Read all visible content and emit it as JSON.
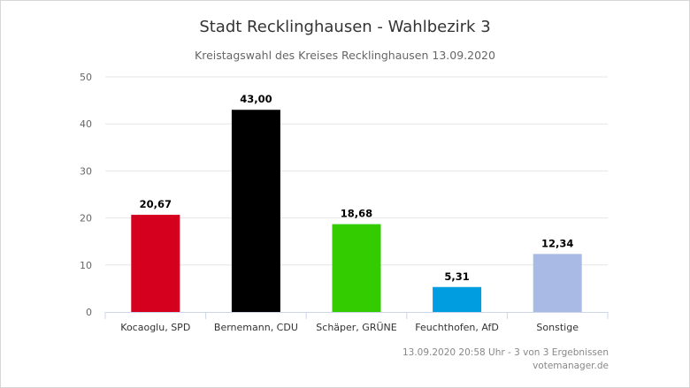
{
  "chart_data": {
    "type": "bar",
    "title": "Stadt Recklinghausen - Wahlbezirk 3",
    "subtitle": "Kreistagswahl des Kreises Recklinghausen 13.09.2020",
    "categories": [
      "Kocaoglu, SPD",
      "Bernemann, CDU",
      "Schäper, GRÜNE",
      "Feuchthofen, AfD",
      "Sonstige"
    ],
    "values": [
      20.67,
      43.0,
      18.68,
      5.31,
      12.34
    ],
    "value_labels": [
      "20,67",
      "43,00",
      "18,68",
      "5,31",
      "12,34"
    ],
    "colors": [
      "#d4001e",
      "#000000",
      "#33cc00",
      "#009ee0",
      "#a9bbe4"
    ],
    "ylim": [
      0,
      50
    ],
    "yticks": [
      0,
      10,
      20,
      30,
      40,
      50
    ],
    "xlabel": "",
    "ylabel": "",
    "grid": true,
    "legend": "none"
  },
  "footer": {
    "timestamp": "13.09.2020 20:58 Uhr - 3 von 3 Ergebnissen",
    "source": "votemanager.de"
  }
}
